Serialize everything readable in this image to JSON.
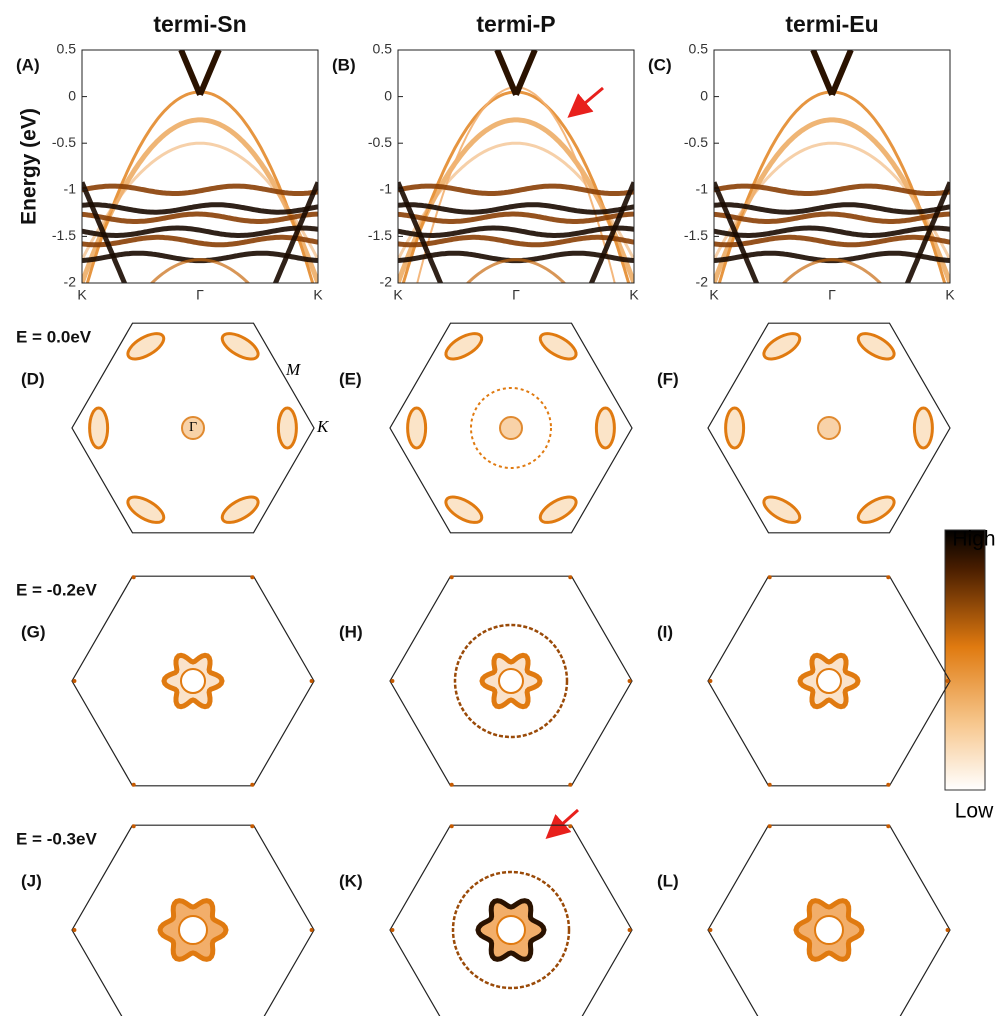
{
  "band_plots": {
    "ylabel": "Energy (eV)",
    "ylim": [
      -2,
      0.5
    ],
    "yticks": [
      0.5,
      0,
      -0.5,
      -1,
      -1.5,
      -2
    ],
    "xticks": [
      "K",
      "Γ",
      "K"
    ],
    "panels": [
      {
        "title": "termi-Sn",
        "label": "(A)"
      },
      {
        "title": "termi-P",
        "label": "(B)"
      },
      {
        "title": "termi-Eu",
        "label": "(C)"
      }
    ]
  },
  "fermi_maps": {
    "rows": [
      {
        "energy": "E = 0.0eV",
        "labels": [
          "(D)",
          "(E)",
          "(F)"
        ]
      },
      {
        "energy": "E = -0.2eV",
        "labels": [
          "(G)",
          "(H)",
          "(I)"
        ]
      },
      {
        "energy": "E = -0.3eV",
        "labels": [
          "(J)",
          "(K)",
          "(L)"
        ]
      }
    ],
    "points": {
      "M": "M",
      "K": "K",
      "Gamma": "Γ"
    }
  },
  "colorbar": {
    "high": "High",
    "low": "Low"
  }
}
